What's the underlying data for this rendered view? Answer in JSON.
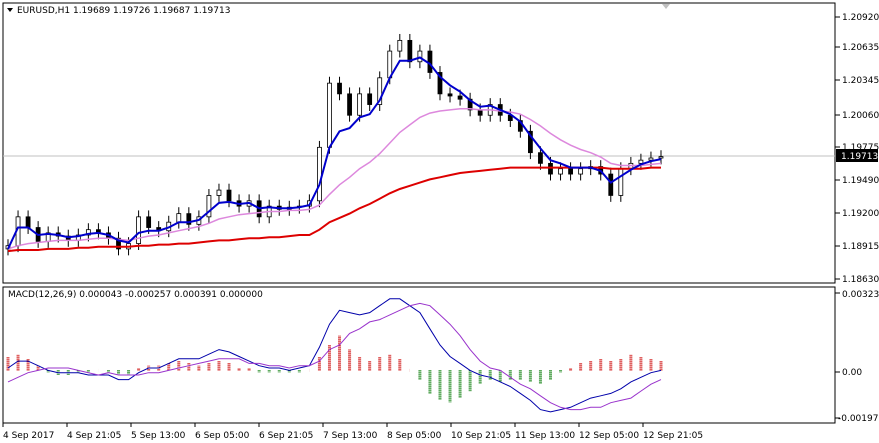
{
  "main": {
    "header": "EURUSD,H1  1.19689 1.19726 1.19687 1.19713",
    "y_ticks": [
      "1.20920",
      "1.20635",
      "1.20345",
      "1.20060",
      "1.19775",
      "1.19490",
      "1.19200",
      "1.18915",
      "1.18630"
    ],
    "current_price": "1.19713",
    "current_value": 1.19713
  },
  "macd": {
    "header": "MACD(12,26,9) 0.000043 -0.000257 0.000391 0.000000",
    "y_ticks": [
      "0.00323",
      "0.00",
      "-0.001976"
    ]
  },
  "x_ticks": [
    "4 Sep 2017",
    "4 Sep 21:05",
    "5 Sep 13:00",
    "6 Sep 05:00",
    "6 Sep 21:05",
    "7 Sep 13:00",
    "8 Sep 05:00",
    "10 Sep 21:05",
    "11 Sep 13:00",
    "12 Sep 05:00",
    "12 Sep 21:05"
  ],
  "colors": {
    "background": "#ffffff",
    "candle": "#000000",
    "fast_ma": "#0000cc",
    "slow_ma": "#dd88dd",
    "long_ma": "#dd0000",
    "hist_up": "#cc0000",
    "hist_down": "#007700",
    "macd_line": "#0000aa",
    "signal_line": "#9933cc",
    "price_marker": "#000000"
  },
  "chart_data": [
    {
      "type": "candlestick",
      "title": "EURUSD,H1  1.19689 1.19726 1.19687 1.19713",
      "ylim": [
        1.1855,
        1.21
      ],
      "x": [
        0,
        10,
        20,
        30,
        40,
        50,
        60,
        70,
        80,
        90,
        100,
        110,
        120,
        130,
        140,
        150,
        160,
        170,
        180,
        190,
        200,
        210,
        220,
        230,
        240,
        250,
        260,
        270,
        280,
        290,
        300,
        310,
        320,
        330,
        340,
        350,
        360,
        370,
        380,
        390,
        400,
        410,
        420,
        430,
        440,
        450,
        460,
        470,
        480,
        490,
        500,
        510,
        520,
        530,
        540,
        550,
        560,
        570,
        580,
        590,
        600,
        610,
        620,
        630,
        640,
        650
      ],
      "close": [
        1.1888,
        1.1915,
        1.1905,
        1.1892,
        1.19,
        1.1897,
        1.1893,
        1.1898,
        1.1903,
        1.19,
        1.1895,
        1.1885,
        1.189,
        1.1915,
        1.1905,
        1.1902,
        1.191,
        1.1918,
        1.1908,
        1.1915,
        1.1935,
        1.194,
        1.193,
        1.1925,
        1.193,
        1.1915,
        1.1925,
        1.1922,
        1.1924,
        1.1925,
        1.193,
        1.198,
        1.204,
        1.203,
        1.201,
        1.203,
        1.202,
        1.2045,
        1.207,
        1.208,
        1.206,
        1.207,
        1.205,
        1.203,
        1.2028,
        1.2025,
        1.2015,
        1.201,
        1.202,
        1.201,
        1.2005,
        1.1995,
        1.1975,
        1.1965,
        1.1955,
        1.196,
        1.1955,
        1.196,
        1.1962,
        1.1955,
        1.1935,
        1.196,
        1.1965,
        1.1968,
        1.197,
        1.19713
      ],
      "series": [
        {
          "name": "fast",
          "values": [
            1.1885,
            1.1905,
            1.1905,
            1.1898,
            1.1899,
            1.1898,
            1.1896,
            1.1897,
            1.1899,
            1.19,
            1.1898,
            1.1893,
            1.1891,
            1.19,
            1.1902,
            1.1902,
            1.1905,
            1.191,
            1.191,
            1.1912,
            1.192,
            1.1928,
            1.1929,
            1.1927,
            1.1928,
            1.1923,
            1.1924,
            1.1923,
            1.1923,
            1.1924,
            1.1926,
            1.1945,
            1.198,
            1.1995,
            1.1998,
            1.2008,
            1.2011,
            1.2024,
            1.2045,
            1.2061,
            1.2061,
            1.2064,
            1.2058,
            1.2046,
            1.2038,
            1.2032,
            1.2024,
            1.2018,
            1.2019,
            1.2015,
            1.2011,
            1.2004,
            1.1991,
            1.1979,
            1.1968,
            1.1965,
            1.1961,
            1.1961,
            1.1961,
            1.1958,
            1.1947,
            1.1953,
            1.1959,
            1.1964,
            1.1967,
            1.1969
          ]
        },
        {
          "name": "slow",
          "values": [
            1.1885,
            1.1888,
            1.189,
            1.1891,
            1.1892,
            1.1893,
            1.1893,
            1.1893,
            1.1894,
            1.1895,
            1.1895,
            1.1894,
            1.1893,
            1.1895,
            1.1897,
            1.1898,
            1.19,
            1.1902,
            1.1904,
            1.1906,
            1.1909,
            1.1913,
            1.1915,
            1.1917,
            1.1918,
            1.1919,
            1.192,
            1.192,
            1.1921,
            1.1921,
            1.1922,
            1.1926,
            1.1936,
            1.1945,
            1.1952,
            1.196,
            1.1966,
            1.1974,
            1.1984,
            1.1994,
            1.2001,
            1.2008,
            1.2012,
            1.2014,
            1.2015,
            1.2016,
            1.2016,
            1.2015,
            1.2015,
            1.2014,
            1.2013,
            1.2011,
            1.2006,
            1.2,
            1.1993,
            1.1987,
            1.1982,
            1.1978,
            1.1975,
            1.1971,
            1.1965,
            1.1963,
            1.1963,
            1.1963,
            1.1964,
            1.1965
          ]
        },
        {
          "name": "long",
          "values": [
            1.1883,
            1.1884,
            1.1884,
            1.1884,
            1.1885,
            1.1885,
            1.1885,
            1.1886,
            1.1886,
            1.1887,
            1.1887,
            1.1887,
            1.1887,
            1.1888,
            1.1888,
            1.1889,
            1.1889,
            1.189,
            1.189,
            1.1891,
            1.1892,
            1.1893,
            1.1893,
            1.1894,
            1.1895,
            1.1895,
            1.1896,
            1.1896,
            1.1897,
            1.1898,
            1.1898,
            1.1903,
            1.191,
            1.1914,
            1.1918,
            1.1923,
            1.1927,
            1.1932,
            1.1937,
            1.1941,
            1.1944,
            1.1947,
            1.195,
            1.1952,
            1.1954,
            1.1956,
            1.1957,
            1.1958,
            1.1959,
            1.196,
            1.1961,
            1.1961,
            1.1961,
            1.1961,
            1.1961,
            1.1961,
            1.1961,
            1.1961,
            1.1961,
            1.1961,
            1.196,
            1.196,
            1.196,
            1.196,
            1.1961,
            1.1961
          ]
        }
      ]
    },
    {
      "type": "bar",
      "title": "MACD(12,26,9) 0.000043 -0.000257 0.000391 0.000000",
      "ylim": [
        -0.00215,
        0.00335
      ],
      "x": [
        0,
        10,
        20,
        30,
        40,
        50,
        60,
        70,
        80,
        90,
        100,
        110,
        120,
        130,
        140,
        150,
        160,
        170,
        180,
        190,
        200,
        210,
        220,
        230,
        240,
        250,
        260,
        270,
        280,
        290,
        300,
        310,
        320,
        330,
        340,
        350,
        360,
        370,
        380,
        390,
        400,
        410,
        420,
        430,
        440,
        450,
        460,
        470,
        480,
        490,
        500,
        510,
        520,
        530,
        540,
        550,
        560,
        570,
        580,
        590,
        600,
        610,
        620,
        630,
        640,
        650
      ],
      "values": [
        0.0006,
        0.0007,
        0.0005,
        0.0002,
        -0.0001,
        -0.0002,
        -0.0002,
        -0.0001,
        -0.0001,
        0.0,
        -0.0001,
        -0.0002,
        -0.0002,
        0.0001,
        0.0002,
        0.0002,
        0.0003,
        0.0004,
        0.0003,
        0.0002,
        0.0003,
        0.0004,
        0.0003,
        0.0001,
        0.0001,
        -0.0001,
        -0.0001,
        -0.0001,
        -0.0001,
        -0.0001,
        0.0,
        0.0006,
        0.0011,
        0.0015,
        0.0009,
        0.0006,
        0.0004,
        0.0006,
        0.0007,
        0.0005,
        0.0,
        -0.0004,
        -0.001,
        -0.0013,
        -0.0014,
        -0.0012,
        -0.0009,
        -0.0006,
        -0.0004,
        -0.0005,
        -0.0004,
        -0.0004,
        -0.0005,
        -0.0006,
        -0.0004,
        -0.0001,
        0.0001,
        0.0003,
        0.0004,
        0.0005,
        0.0004,
        0.0005,
        0.0007,
        0.0006,
        0.0005,
        0.0004
      ],
      "series": [
        {
          "name": "MACD",
          "values": [
            0.0001,
            0.0004,
            0.0004,
            0.0002,
            0.0,
            -0.0001,
            -0.0001,
            -0.0001,
            -0.0002,
            -0.0002,
            -0.0002,
            -0.0004,
            -0.0004,
            -0.0001,
            0.0001,
            0.0001,
            0.0003,
            0.0005,
            0.0005,
            0.0005,
            0.0007,
            0.0009,
            0.0008,
            0.0006,
            0.0004,
            0.0002,
            0.0001,
            0.0001,
            0.0,
            0.0001,
            0.0002,
            0.001,
            0.002,
            0.0026,
            0.0025,
            0.0024,
            0.0025,
            0.0028,
            0.0031,
            0.0031,
            0.0028,
            0.0025,
            0.0018,
            0.0011,
            0.0006,
            0.0003,
            0.0,
            -0.0002,
            -0.0003,
            -0.0005,
            -0.0007,
            -0.001,
            -0.0013,
            -0.0017,
            -0.0018,
            -0.0017,
            -0.0016,
            -0.0014,
            -0.0012,
            -0.0011,
            -0.001,
            -0.0008,
            -0.0005,
            -0.0003,
            -0.0001,
            0.0
          ]
        },
        {
          "name": "Signal",
          "values": [
            -0.0005,
            -0.0003,
            -0.0001,
            0.0,
            0.0001,
            0.0001,
            0.0001,
            0.0,
            -0.0001,
            -0.0002,
            -0.0001,
            -0.0002,
            -0.0002,
            -0.0002,
            -0.0001,
            -0.0001,
            0.0,
            0.0001,
            0.0002,
            0.0003,
            0.0004,
            0.0005,
            0.0005,
            0.0005,
            0.0003,
            0.0003,
            0.0002,
            0.0002,
            0.0001,
            0.0002,
            0.0002,
            0.0004,
            0.0009,
            0.0011,
            0.0016,
            0.0018,
            0.0021,
            0.0022,
            0.0024,
            0.0026,
            0.0028,
            0.0029,
            0.0028,
            0.0024,
            0.002,
            0.0015,
            0.0009,
            0.0004,
            0.0001,
            0.0,
            -0.0003,
            -0.0006,
            -0.0008,
            -0.0011,
            -0.0014,
            -0.0016,
            -0.0017,
            -0.0017,
            -0.0016,
            -0.0016,
            -0.0014,
            -0.0013,
            -0.0012,
            -0.0009,
            -0.0006,
            -0.0004
          ]
        }
      ]
    }
  ]
}
